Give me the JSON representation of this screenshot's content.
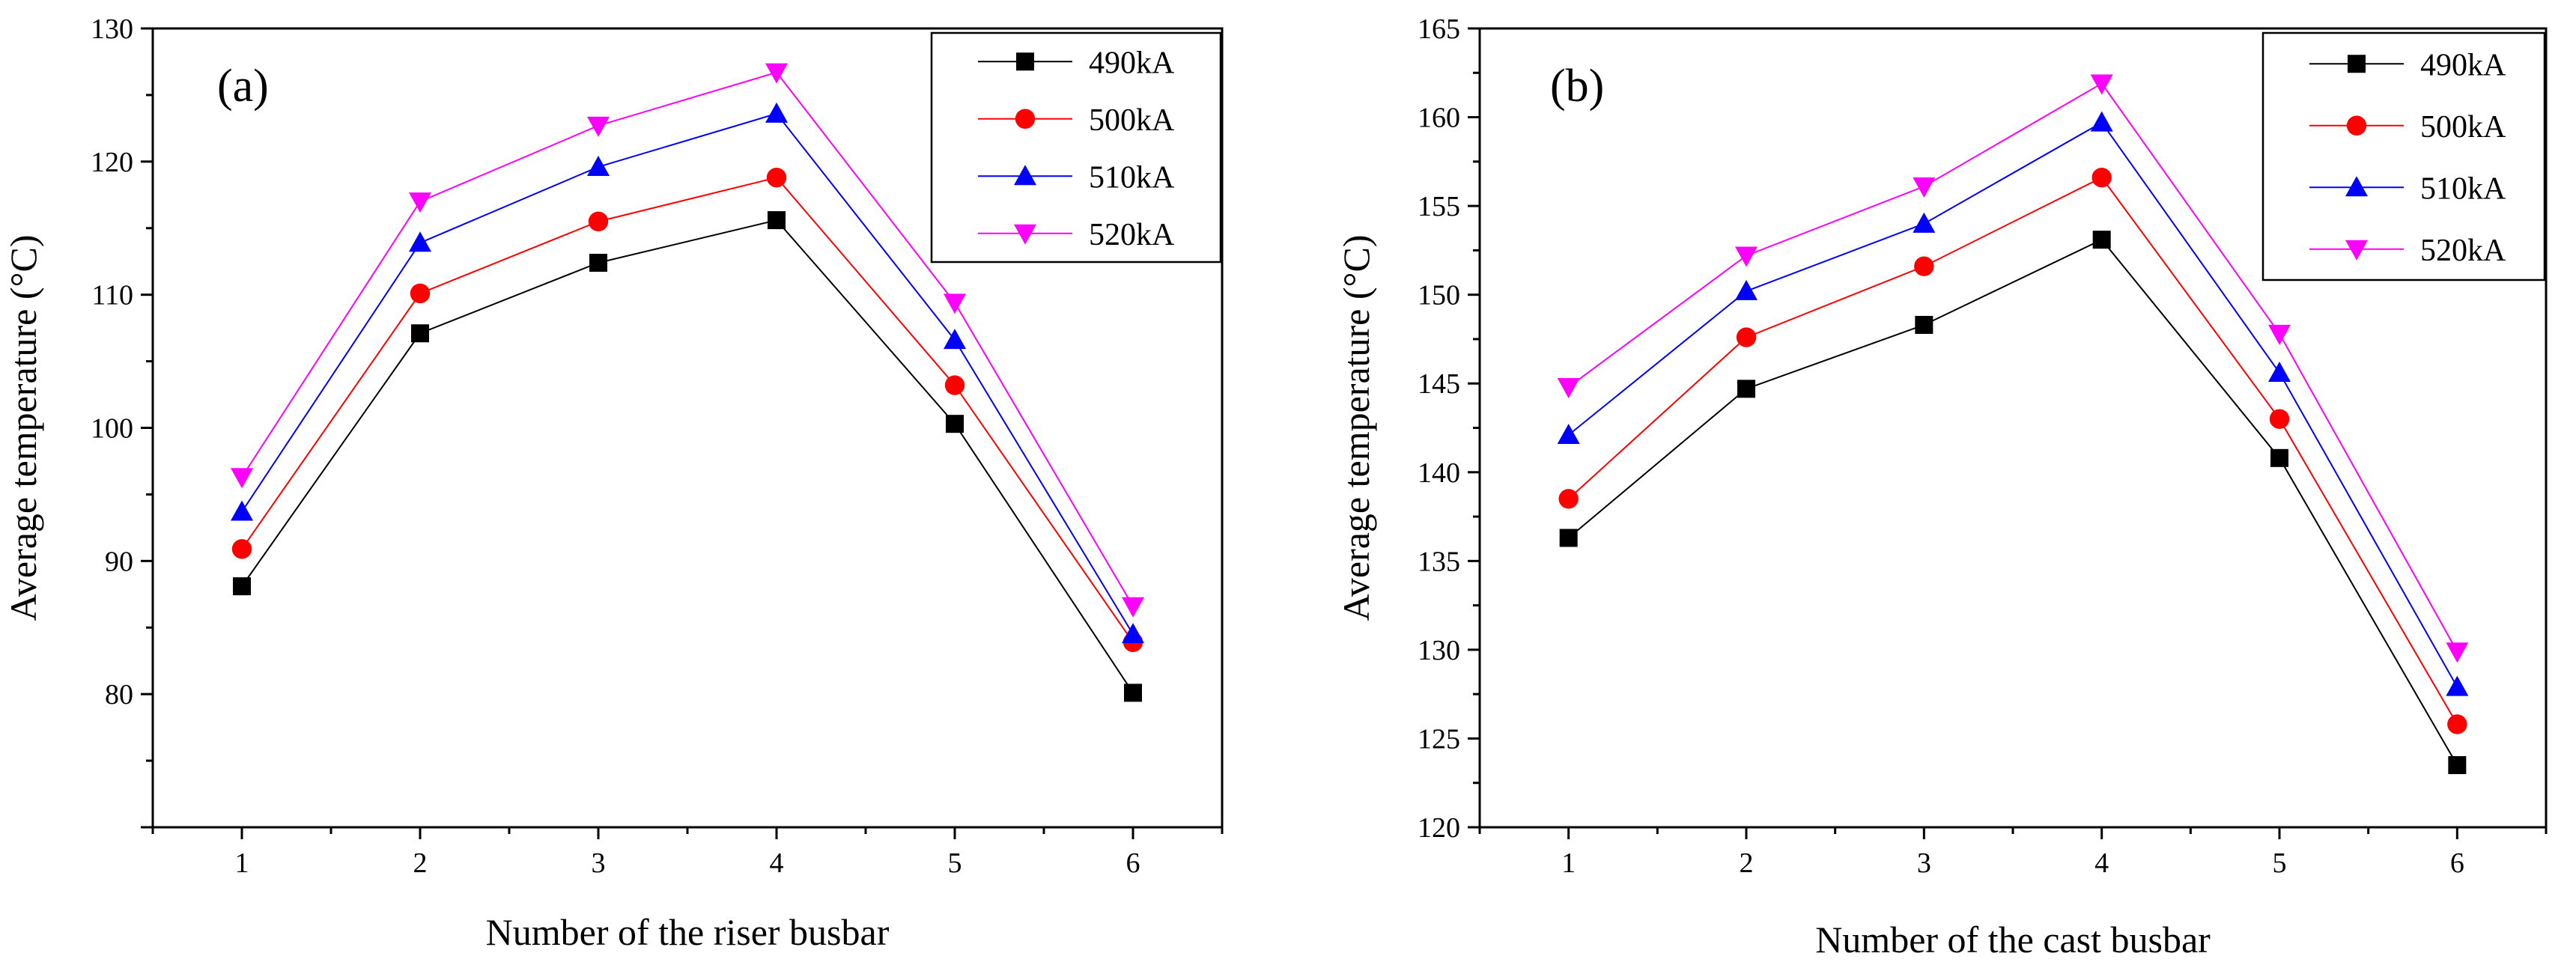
{
  "chart_data": [
    {
      "type": "line",
      "panel_label": "(a)",
      "xlabel": "Number of the riser busbar",
      "ylabel": "Average temperature (°C)",
      "x": [
        1,
        2,
        3,
        4,
        5,
        6
      ],
      "xticks": [
        "1",
        "2",
        "3",
        "4",
        "5",
        "6"
      ],
      "xlim": [
        0.5,
        6.5
      ],
      "ylim": [
        70,
        130
      ],
      "yticks": [
        80,
        90,
        100,
        110,
        120,
        130
      ],
      "legend_position": "top-right",
      "series": [
        {
          "name": "490kA",
          "color": "#000000",
          "marker": "square",
          "values": [
            88.1,
            107.1,
            112.4,
            115.6,
            100.3,
            80.1
          ]
        },
        {
          "name": "500kA",
          "color": "#ff0000",
          "marker": "circle",
          "values": [
            90.9,
            110.1,
            115.5,
            118.8,
            103.2,
            83.9
          ]
        },
        {
          "name": "510kA",
          "color": "#0000ff",
          "marker": "triangle-up",
          "values": [
            93.7,
            113.9,
            119.6,
            123.6,
            106.6,
            84.5
          ]
        },
        {
          "name": "520kA",
          "color": "#ff00ff",
          "marker": "triangle-down",
          "values": [
            96.3,
            117.0,
            122.7,
            126.7,
            109.4,
            86.6
          ]
        }
      ]
    },
    {
      "type": "line",
      "panel_label": "(b)",
      "xlabel": "Number of the cast busbar",
      "ylabel": "Average temperature (°C)",
      "x": [
        1,
        2,
        3,
        4,
        5,
        6
      ],
      "xticks": [
        "1",
        "2",
        "3",
        "4",
        "5",
        "6"
      ],
      "xlim": [
        0.5,
        6.5
      ],
      "ylim": [
        120,
        165
      ],
      "yticks": [
        120,
        125,
        130,
        135,
        140,
        145,
        150,
        155,
        160,
        165
      ],
      "legend_position": "top-right",
      "series": [
        {
          "name": "490kA",
          "color": "#000000",
          "marker": "square",
          "values": [
            136.3,
            144.7,
            148.3,
            153.1,
            140.8,
            123.5
          ]
        },
        {
          "name": "500kA",
          "color": "#ff0000",
          "marker": "circle",
          "values": [
            138.5,
            147.6,
            151.6,
            156.6,
            143.0,
            125.8
          ]
        },
        {
          "name": "510kA",
          "color": "#0000ff",
          "marker": "triangle-up",
          "values": [
            142.1,
            150.2,
            154.0,
            159.7,
            145.6,
            127.9
          ]
        },
        {
          "name": "520kA",
          "color": "#ff00ff",
          "marker": "triangle-down",
          "values": [
            144.8,
            152.2,
            156.1,
            161.9,
            147.8,
            129.9
          ]
        }
      ]
    }
  ]
}
